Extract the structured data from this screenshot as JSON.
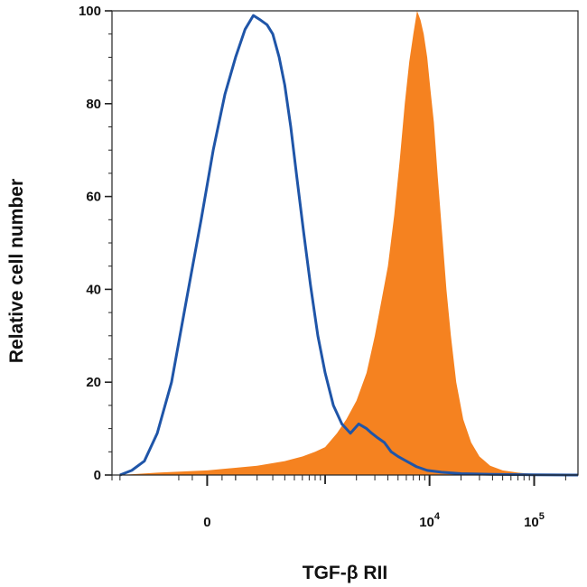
{
  "chart_data": {
    "type": "area",
    "title": "",
    "xlabel": "TGF-β RII",
    "ylabel": "Relative cell number",
    "x_scale": "biexponential",
    "xlim": [
      -600,
      262144
    ],
    "ylim": [
      0,
      100
    ],
    "grid": false,
    "legend": "none",
    "y_ticks": [
      "0",
      "20",
      "40",
      "60",
      "80",
      "100"
    ],
    "x_ticks": [
      {
        "base": "0",
        "exp": "",
        "value": 0
      },
      {
        "base": "10",
        "exp": "4",
        "value": 10000
      },
      {
        "base": "10",
        "exp": "5",
        "value": 100000
      }
    ],
    "series": [
      {
        "style": "outline",
        "color": "#1f55a8",
        "x": [
          -500,
          -380,
          -280,
          -200,
          -130,
          -70,
          -20,
          20,
          60,
          100,
          140,
          180,
          220,
          260,
          300,
          350,
          400,
          460,
          530,
          620,
          720,
          850,
          1000,
          1200,
          1450,
          1750,
          2100,
          2500,
          2800,
          3200,
          3700,
          4300,
          5000,
          6000,
          7500,
          9500,
          13000,
          20000,
          40000,
          100000,
          262144
        ],
        "y": [
          0,
          1,
          3,
          9,
          20,
          38,
          55,
          70,
          82,
          90,
          96,
          99,
          98,
          97,
          95,
          90,
          84,
          75,
          64,
          52,
          41,
          30,
          22,
          15,
          11,
          9,
          11,
          10,
          9,
          8,
          7,
          5,
          4,
          3,
          1.8,
          1,
          0.6,
          0.3,
          0.15,
          0.05,
          0
        ]
      },
      {
        "style": "filled",
        "color": "#f58220",
        "x": [
          -500,
          -200,
          0,
          200,
          400,
          600,
          800,
          1000,
          1300,
          1600,
          2000,
          2500,
          3000,
          3500,
          4000,
          4600,
          5200,
          5800,
          6400,
          7000,
          7600,
          8200,
          8800,
          9500,
          10200,
          11000,
          12000,
          13200,
          14500,
          16000,
          18000,
          21000,
          25000,
          30000,
          38000,
          50000,
          70000,
          100000,
          262144
        ],
        "y": [
          0,
          0.5,
          1,
          2,
          3,
          4,
          5,
          6,
          9,
          12,
          16,
          22,
          30,
          38,
          45,
          56,
          68,
          80,
          89,
          95,
          100,
          98,
          95,
          90,
          83,
          76,
          64,
          52,
          40,
          30,
          20,
          12,
          7,
          4,
          2,
          1,
          0.5,
          0.2,
          0
        ]
      }
    ]
  }
}
